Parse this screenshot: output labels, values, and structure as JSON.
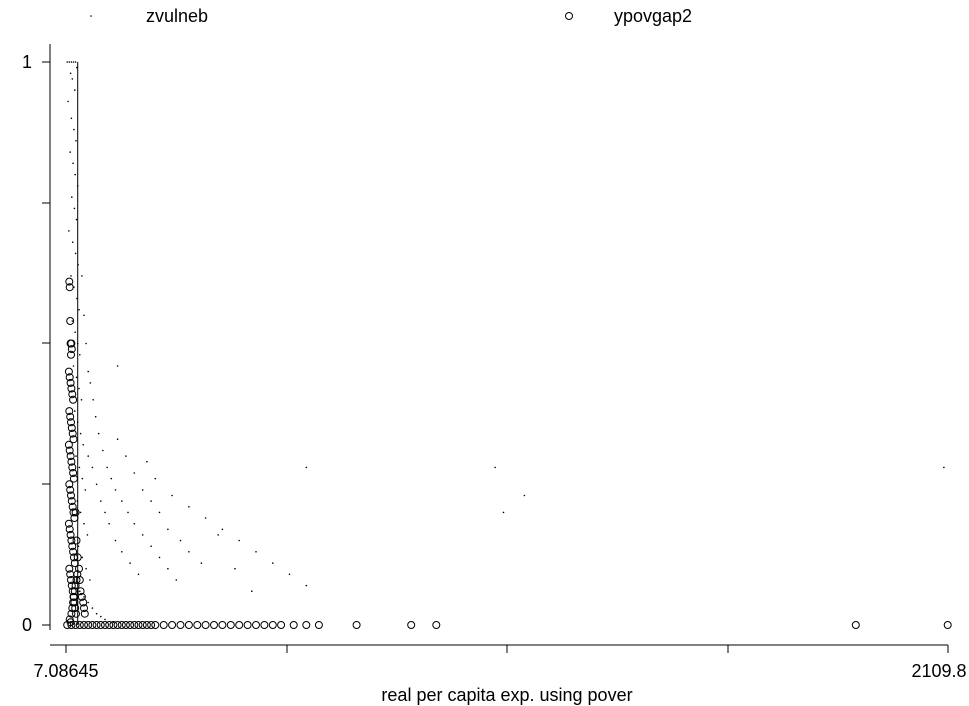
{
  "chart_data": {
    "type": "scatter",
    "title": "",
    "xlabel": "real per capita exp. using pover",
    "ylabel": "",
    "xlim": [
      7.08645,
      2109.8
    ],
    "ylim": [
      0,
      1
    ],
    "x_tick_labels": [
      "7.08645",
      "2109.8"
    ],
    "y_tick_labels": [
      "0",
      "1"
    ],
    "legend_position": "top",
    "grid": false,
    "poverty_line_x": 35,
    "series": [
      {
        "name": "zvulneb",
        "marker": "tiny-dot",
        "color": "#000000",
        "points": [
          [
            10,
            1
          ],
          [
            15,
            1
          ],
          [
            20,
            1
          ],
          [
            25,
            1
          ],
          [
            30,
            1
          ],
          [
            18,
            0.98
          ],
          [
            22,
            0.97
          ],
          [
            28,
            0.95
          ],
          [
            33,
            0.99
          ],
          [
            12,
            0.93
          ],
          [
            20,
            0.9
          ],
          [
            26,
            0.88
          ],
          [
            31,
            0.86
          ],
          [
            17,
            0.84
          ],
          [
            24,
            0.82
          ],
          [
            29,
            0.8
          ],
          [
            35,
            0.78
          ],
          [
            21,
            0.76
          ],
          [
            27,
            0.74
          ],
          [
            32,
            0.72
          ],
          [
            14,
            0.7
          ],
          [
            23,
            0.68
          ],
          [
            30,
            0.66
          ],
          [
            36,
            0.64
          ],
          [
            19,
            0.62
          ],
          [
            26,
            0.6
          ],
          [
            33,
            0.58
          ],
          [
            38,
            0.56
          ],
          [
            22,
            0.54
          ],
          [
            29,
            0.52
          ],
          [
            35,
            0.5
          ],
          [
            40,
            0.48
          ],
          [
            25,
            0.46
          ],
          [
            32,
            0.44
          ],
          [
            38,
            0.42
          ],
          [
            44,
            0.4
          ],
          [
            28,
            0.38
          ],
          [
            35,
            0.36
          ],
          [
            42,
            0.34
          ],
          [
            48,
            0.32
          ],
          [
            31,
            0.3
          ],
          [
            39,
            0.28
          ],
          [
            46,
            0.26
          ],
          [
            53,
            0.24
          ],
          [
            34,
            0.22
          ],
          [
            42,
            0.2
          ],
          [
            50,
            0.18
          ],
          [
            58,
            0.16
          ],
          [
            37,
            0.14
          ],
          [
            46,
            0.12
          ],
          [
            55,
            0.1
          ],
          [
            64,
            0.08
          ],
          [
            40,
            0.06
          ],
          [
            50,
            0.05
          ],
          [
            60,
            0.04
          ],
          [
            70,
            0.03
          ],
          [
            80,
            0.02
          ],
          [
            90,
            0.015
          ],
          [
            100,
            0.01
          ],
          [
            120,
            0.005
          ],
          [
            45,
            0.62
          ],
          [
            50,
            0.55
          ],
          [
            55,
            0.5
          ],
          [
            60,
            0.45
          ],
          [
            65,
            0.43
          ],
          [
            72,
            0.4
          ],
          [
            78,
            0.37
          ],
          [
            85,
            0.34
          ],
          [
            95,
            0.31
          ],
          [
            105,
            0.28
          ],
          [
            115,
            0.26
          ],
          [
            125,
            0.24
          ],
          [
            140,
            0.22
          ],
          [
            155,
            0.2
          ],
          [
            170,
            0.18
          ],
          [
            190,
            0.16
          ],
          [
            210,
            0.14
          ],
          [
            230,
            0.12
          ],
          [
            250,
            0.1
          ],
          [
            270,
            0.08
          ],
          [
            60,
            0.3
          ],
          [
            70,
            0.28
          ],
          [
            80,
            0.25
          ],
          [
            90,
            0.22
          ],
          [
            100,
            0.2
          ],
          [
            110,
            0.18
          ],
          [
            125,
            0.15
          ],
          [
            140,
            0.13
          ],
          [
            160,
            0.11
          ],
          [
            180,
            0.09
          ],
          [
            130,
            0.33
          ],
          [
            150,
            0.3
          ],
          [
            170,
            0.27
          ],
          [
            190,
            0.24
          ],
          [
            210,
            0.22
          ],
          [
            230,
            0.2
          ],
          [
            250,
            0.17
          ],
          [
            280,
            0.15
          ],
          [
            300,
            0.13
          ],
          [
            330,
            0.11
          ],
          [
            200,
            0.29
          ],
          [
            220,
            0.26
          ],
          [
            260,
            0.23
          ],
          [
            300,
            0.21
          ],
          [
            340,
            0.19
          ],
          [
            380,
            0.17
          ],
          [
            420,
            0.15
          ],
          [
            460,
            0.13
          ],
          [
            500,
            0.11
          ],
          [
            540,
            0.09
          ],
          [
            580,
            0.28
          ],
          [
            580,
            0.07
          ],
          [
            370,
            0.16
          ],
          [
            410,
            0.1
          ],
          [
            450,
            0.06
          ],
          [
            1030,
            0.28
          ],
          [
            1050,
            0.2
          ],
          [
            1100,
            0.23
          ],
          [
            2100,
            0.28
          ],
          [
            130,
            0.46
          ]
        ]
      },
      {
        "name": "ypovgap2",
        "marker": "hollow-circle",
        "color": "#000000",
        "points": [
          [
            15,
            0.61
          ],
          [
            16,
            0.6
          ],
          [
            17,
            0.54
          ],
          [
            18,
            0.5
          ],
          [
            19,
            0.48
          ],
          [
            20,
            0.5
          ],
          [
            21,
            0.49
          ],
          [
            14,
            0.45
          ],
          [
            16,
            0.44
          ],
          [
            18,
            0.43
          ],
          [
            20,
            0.42
          ],
          [
            22,
            0.41
          ],
          [
            24,
            0.4
          ],
          [
            15,
            0.38
          ],
          [
            17,
            0.37
          ],
          [
            19,
            0.36
          ],
          [
            21,
            0.35
          ],
          [
            23,
            0.34
          ],
          [
            25,
            0.33
          ],
          [
            14,
            0.32
          ],
          [
            16,
            0.31
          ],
          [
            18,
            0.3
          ],
          [
            20,
            0.29
          ],
          [
            22,
            0.28
          ],
          [
            24,
            0.27
          ],
          [
            26,
            0.26
          ],
          [
            15,
            0.25
          ],
          [
            17,
            0.24
          ],
          [
            19,
            0.23
          ],
          [
            21,
            0.22
          ],
          [
            23,
            0.21
          ],
          [
            25,
            0.2
          ],
          [
            27,
            0.19
          ],
          [
            14,
            0.18
          ],
          [
            16,
            0.17
          ],
          [
            18,
            0.16
          ],
          [
            20,
            0.15
          ],
          [
            22,
            0.14
          ],
          [
            24,
            0.13
          ],
          [
            26,
            0.12
          ],
          [
            28,
            0.11
          ],
          [
            15,
            0.1
          ],
          [
            17,
            0.09
          ],
          [
            19,
            0.08
          ],
          [
            21,
            0.07
          ],
          [
            23,
            0.06
          ],
          [
            25,
            0.05
          ],
          [
            27,
            0.04
          ],
          [
            29,
            0.03
          ],
          [
            31,
            0.02
          ],
          [
            16,
            0.01
          ],
          [
            18,
            0.005
          ],
          [
            20,
            0.02
          ],
          [
            22,
            0.03
          ],
          [
            24,
            0.04
          ],
          [
            26,
            0.05
          ],
          [
            28,
            0.06
          ],
          [
            30,
            0.07
          ],
          [
            32,
            0.08
          ],
          [
            34,
            0.09
          ],
          [
            30,
            0.2
          ],
          [
            32,
            0.15
          ],
          [
            35,
            0.12
          ],
          [
            38,
            0.1
          ],
          [
            40,
            0.08
          ],
          [
            42,
            0.06
          ],
          [
            45,
            0.05
          ],
          [
            48,
            0.04
          ],
          [
            50,
            0.03
          ],
          [
            52,
            0.02
          ],
          [
            10,
            0
          ],
          [
            20,
            0
          ],
          [
            30,
            0
          ],
          [
            40,
            0
          ],
          [
            50,
            0
          ],
          [
            60,
            0
          ],
          [
            70,
            0
          ],
          [
            80,
            0
          ],
          [
            90,
            0
          ],
          [
            100,
            0
          ],
          [
            110,
            0
          ],
          [
            120,
            0
          ],
          [
            130,
            0
          ],
          [
            140,
            0
          ],
          [
            150,
            0
          ],
          [
            160,
            0
          ],
          [
            170,
            0
          ],
          [
            180,
            0
          ],
          [
            190,
            0
          ],
          [
            200,
            0
          ],
          [
            210,
            0
          ],
          [
            220,
            0
          ],
          [
            240,
            0
          ],
          [
            260,
            0
          ],
          [
            280,
            0
          ],
          [
            300,
            0
          ],
          [
            320,
            0
          ],
          [
            340,
            0
          ],
          [
            360,
            0
          ],
          [
            380,
            0
          ],
          [
            400,
            0
          ],
          [
            420,
            0
          ],
          [
            440,
            0
          ],
          [
            460,
            0
          ],
          [
            480,
            0
          ],
          [
            500,
            0
          ],
          [
            520,
            0
          ],
          [
            550,
            0
          ],
          [
            580,
            0
          ],
          [
            610,
            0
          ],
          [
            700,
            0
          ],
          [
            830,
            0
          ],
          [
            890,
            0
          ],
          [
            1890,
            0
          ],
          [
            2109,
            0
          ]
        ]
      }
    ]
  }
}
